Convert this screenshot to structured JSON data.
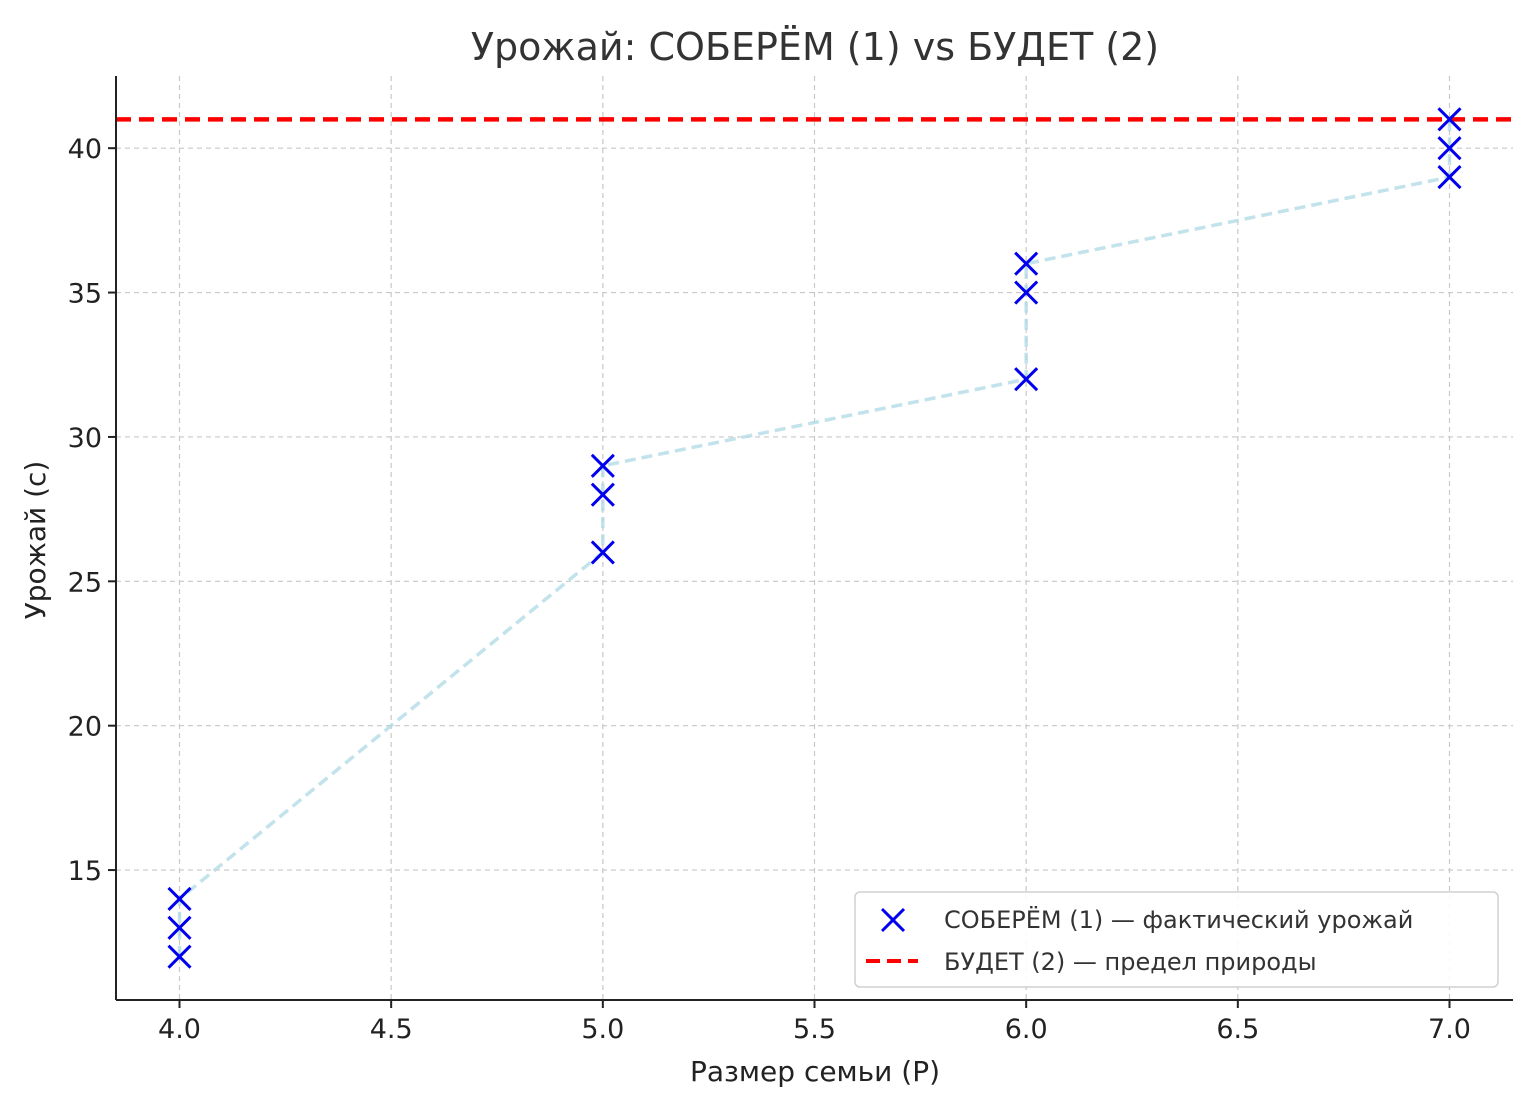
{
  "chart_data": {
    "type": "scatter",
    "title": "Урожай: СОБЕРЁМ (1) vs БУДЕТ (2)",
    "xlabel": "Размер семьи (P)",
    "ylabel": "Урожай (с)",
    "xlim": [
      3.85,
      7.15
    ],
    "ylim": [
      10.5,
      42.5
    ],
    "xticks": [
      4.0,
      4.5,
      5.0,
      5.5,
      6.0,
      6.5,
      7.0
    ],
    "xtick_labels": [
      "4.0",
      "4.5",
      "5.0",
      "5.5",
      "6.0",
      "6.5",
      "7.0"
    ],
    "yticks": [
      15,
      20,
      25,
      30,
      35,
      40
    ],
    "ytick_labels": [
      "15",
      "20",
      "25",
      "30",
      "35",
      "40"
    ],
    "grid": true,
    "legend_position": "bottom-right",
    "series": [
      {
        "name": "СОБЕРЁМ (1) — фактический урожай",
        "kind": "scatter",
        "marker": "x",
        "color": "#0000ee",
        "points": [
          {
            "x": 4,
            "y": 12
          },
          {
            "x": 4,
            "y": 13
          },
          {
            "x": 4,
            "y": 14
          },
          {
            "x": 5,
            "y": 26
          },
          {
            "x": 5,
            "y": 28
          },
          {
            "x": 5,
            "y": 29
          },
          {
            "x": 6,
            "y": 32
          },
          {
            "x": 6,
            "y": 35
          },
          {
            "x": 6,
            "y": 36
          },
          {
            "x": 7,
            "y": 39
          },
          {
            "x": 7,
            "y": 40
          },
          {
            "x": 7,
            "y": 41
          }
        ]
      },
      {
        "kind": "line",
        "style": "dashed",
        "color": "#add8e6",
        "points": [
          {
            "x": 4,
            "y": 12
          },
          {
            "x": 4,
            "y": 13
          },
          {
            "x": 4,
            "y": 14
          },
          {
            "x": 5,
            "y": 26
          },
          {
            "x": 5,
            "y": 28
          },
          {
            "x": 5,
            "y": 29
          },
          {
            "x": 6,
            "y": 32
          },
          {
            "x": 6,
            "y": 35
          },
          {
            "x": 6,
            "y": 36
          },
          {
            "x": 7,
            "y": 39
          },
          {
            "x": 7,
            "y": 40
          },
          {
            "x": 7,
            "y": 41
          }
        ]
      },
      {
        "name": "БУДЕТ (2) — предел природы",
        "kind": "hline",
        "style": "dashed",
        "color": "#ff0000",
        "y": 41
      }
    ]
  }
}
